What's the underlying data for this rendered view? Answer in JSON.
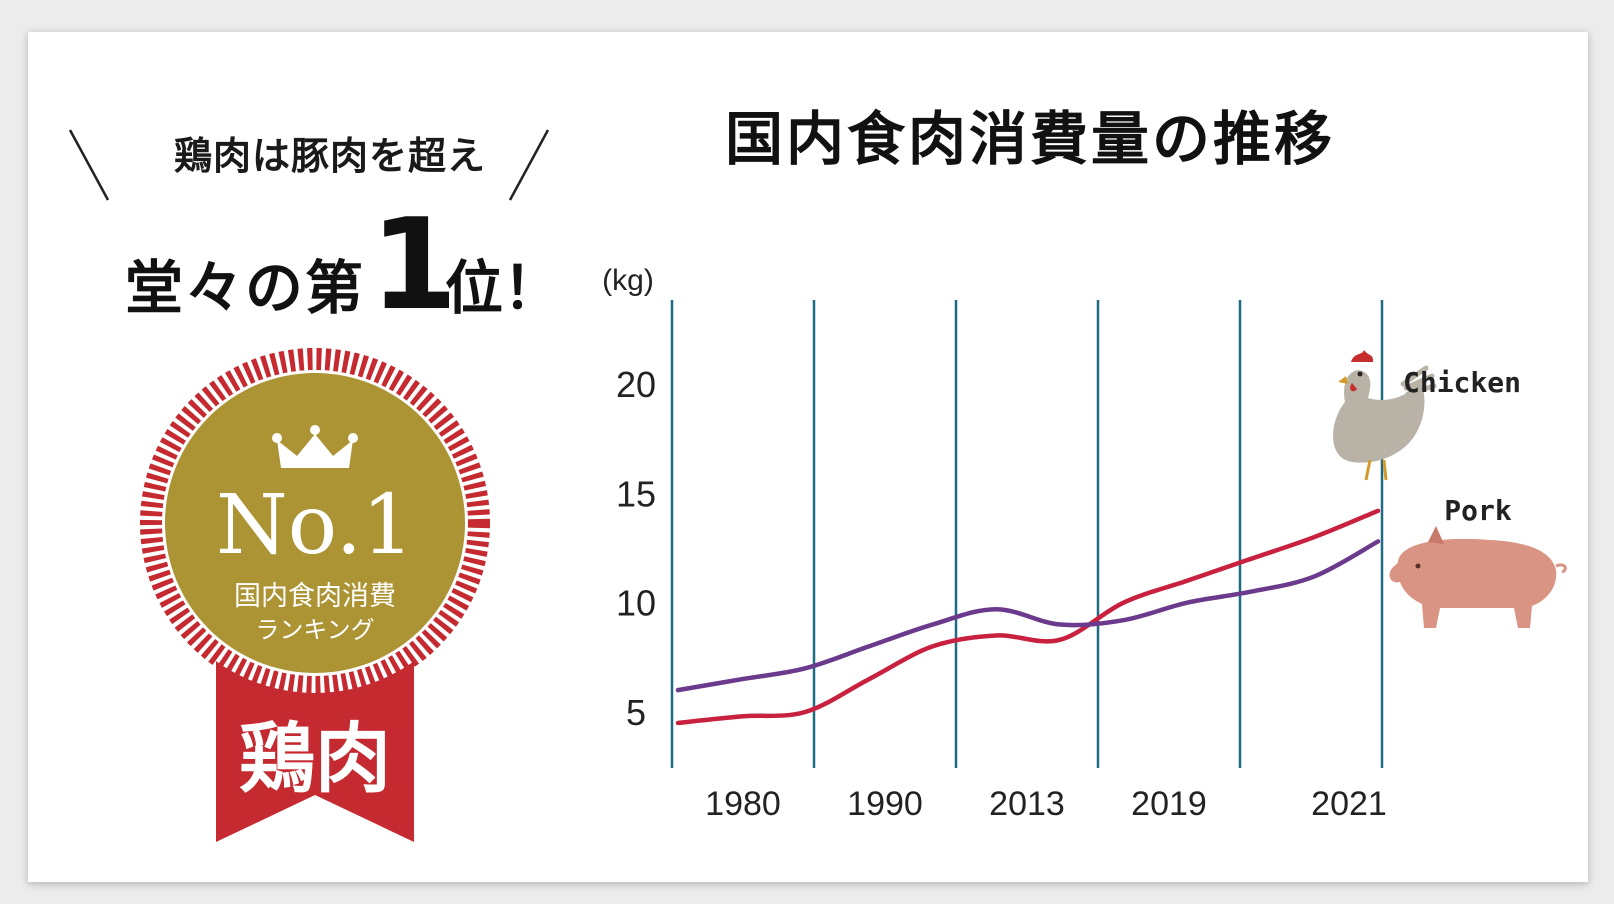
{
  "headline": {
    "line1": "鶏肉は豚肉を超え",
    "line2_pre": "堂々の第",
    "line2_num": "1",
    "line2_post": "位！"
  },
  "badge": {
    "rank": "No.1",
    "caption1": "国内食肉消費",
    "caption2": "ランキング",
    "ribbon": "鶏肉",
    "colors": {
      "gold": "#ac9333",
      "red": "#c42a30"
    }
  },
  "chart_data": {
    "type": "line",
    "title": "国内食肉消費量の推移",
    "ylabel": "(kg)",
    "ylim": [
      3,
      22
    ],
    "yticks": [
      5,
      10,
      15,
      20
    ],
    "xtick_labels": [
      "1980",
      "1990",
      "2013",
      "2019",
      "2021"
    ],
    "grid": "vertical lines",
    "series": [
      {
        "name": "Chicken",
        "color": "#c8203f",
        "values": [
          4.5,
          4.8,
          5.0,
          6.5,
          8.0,
          8.5,
          8.3,
          10.0,
          11.0,
          12.0,
          13.0,
          14.2
        ]
      },
      {
        "name": "Pork",
        "color": "#6b3a8c",
        "values": [
          6.0,
          6.5,
          7.0,
          8.0,
          9.0,
          9.7,
          9.0,
          9.2,
          10.0,
          10.5,
          11.2,
          12.8
        ]
      }
    ]
  }
}
